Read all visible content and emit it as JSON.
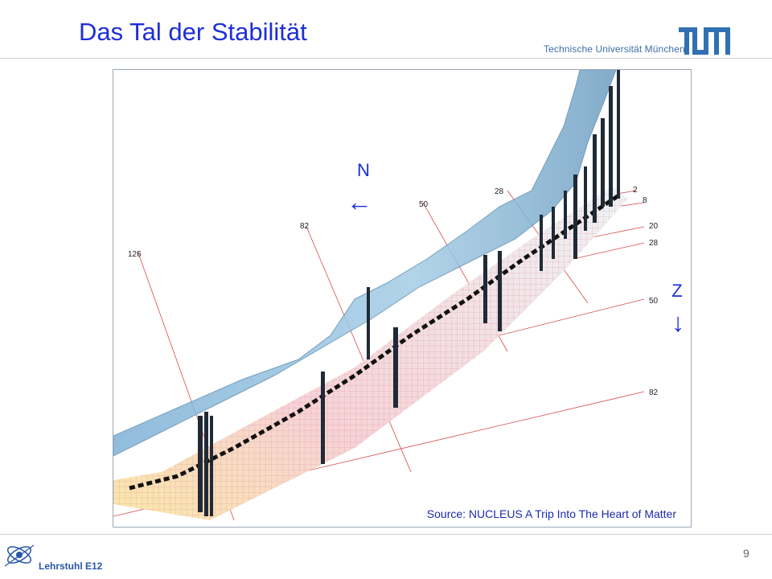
{
  "header": {
    "title": "Das Tal der Stabilität",
    "institution": "Technische Universität München",
    "logo_icon": "tum-logo-icon",
    "brand_color": "#3070b3"
  },
  "figure": {
    "axis_n": "N",
    "axis_z": "Z",
    "arrow_left": "←",
    "arrow_down": "↓",
    "n_labels": [
      "126",
      "82",
      "50",
      "28"
    ],
    "z_labels": [
      "2",
      "8",
      "20",
      "28",
      "50",
      "82"
    ],
    "source": "Source: NUCLEUS  A Trip Into The Heart of Matter"
  },
  "footer": {
    "chair": "Lehrstuhl E12",
    "logo_icon": "e12-logo-icon",
    "page_number": "9"
  }
}
